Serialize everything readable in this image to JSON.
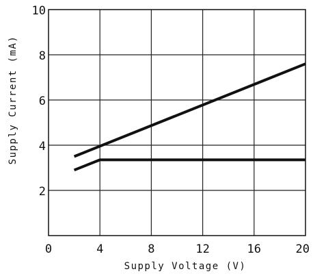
{
  "chart_data": {
    "type": "line",
    "title": "",
    "xlabel": "Supply Voltage (V)",
    "ylabel": "Supply Current (mA)",
    "xlim": [
      0,
      20
    ],
    "ylim": [
      0,
      10
    ],
    "x_ticks": [
      "0",
      "4",
      "8",
      "12",
      "16",
      "20"
    ],
    "y_ticks": [
      "2",
      "4",
      "6",
      "8",
      "10"
    ],
    "grid": true,
    "legend": "none",
    "line_color": "#111111",
    "grid_color": "#222222",
    "series": [
      {
        "points": [
          [
            2.0,
            3.5
          ],
          [
            20.0,
            7.6
          ]
        ]
      },
      {
        "points": [
          [
            2.0,
            2.9
          ],
          [
            4.0,
            3.35
          ],
          [
            20.0,
            3.35
          ]
        ]
      }
    ]
  }
}
